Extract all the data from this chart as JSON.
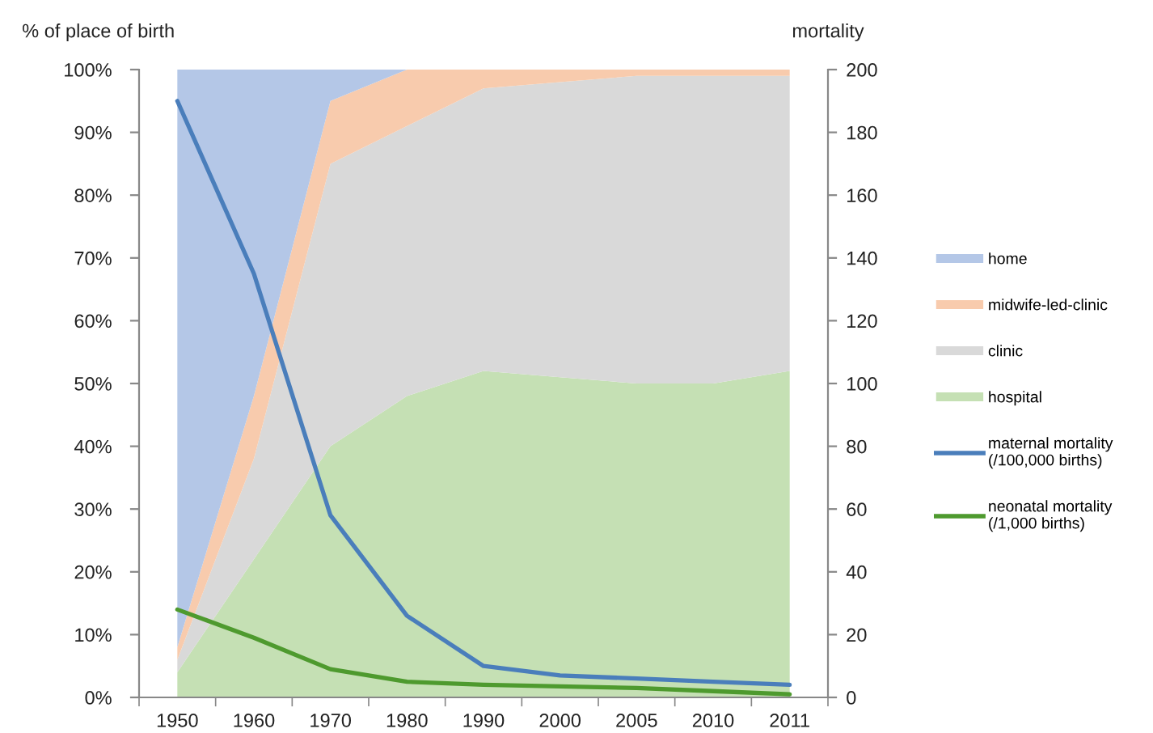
{
  "chart_data": {
    "type": "area",
    "stacked": true,
    "ylabel": "% of place of birth",
    "y2label": "mortality",
    "categories": [
      "1950",
      "1960",
      "1970",
      "1980",
      "1990",
      "2000",
      "2005",
      "2010",
      "2011"
    ],
    "ylim": [
      0,
      100
    ],
    "yticks": [
      {
        "value": 0,
        "label": "0%"
      },
      {
        "value": 10,
        "label": "10%"
      },
      {
        "value": 20,
        "label": "20%"
      },
      {
        "value": 30,
        "label": "30%"
      },
      {
        "value": 40,
        "label": "40%"
      },
      {
        "value": 50,
        "label": "50%"
      },
      {
        "value": 60,
        "label": "60%"
      },
      {
        "value": 70,
        "label": "70%"
      },
      {
        "value": 80,
        "label": "80%"
      },
      {
        "value": 90,
        "label": "90%"
      },
      {
        "value": 100,
        "label": "100%"
      }
    ],
    "y2lim": [
      0,
      200
    ],
    "y2ticks": [
      0,
      20,
      40,
      60,
      80,
      100,
      120,
      140,
      160,
      180,
      200
    ],
    "series": [
      {
        "name": "hospital",
        "color": "#c5e0b4",
        "values": [
          4,
          22,
          40,
          48,
          52,
          51,
          50,
          50,
          52
        ]
      },
      {
        "name": "clinic",
        "color": "#d9d9d9",
        "values": [
          2,
          16,
          45,
          43,
          45,
          47,
          49,
          49,
          47
        ]
      },
      {
        "name": "midwife-led-clinic",
        "color": "#f8cbad",
        "values": [
          2,
          10,
          10,
          9,
          3,
          2,
          1,
          1,
          1
        ]
      },
      {
        "name": "home",
        "color": "#b4c7e7",
        "values": [
          92,
          52,
          5,
          0,
          0,
          0,
          0,
          0,
          0
        ]
      },
      {
        "name": "maternal mortality\n(/100,000 births)",
        "type": "line",
        "axis": "y2",
        "color": "#4a7ebb",
        "values": [
          190,
          135,
          58,
          26,
          10,
          7,
          6,
          5,
          4
        ]
      },
      {
        "name": "neonatal mortality\n(/1,000 births)",
        "type": "line",
        "axis": "y2",
        "color": "#4e9a2e",
        "values": [
          28,
          19,
          9,
          5,
          4,
          3.5,
          3,
          2,
          1
        ]
      }
    ],
    "legend": "right",
    "line_style": "solid"
  }
}
